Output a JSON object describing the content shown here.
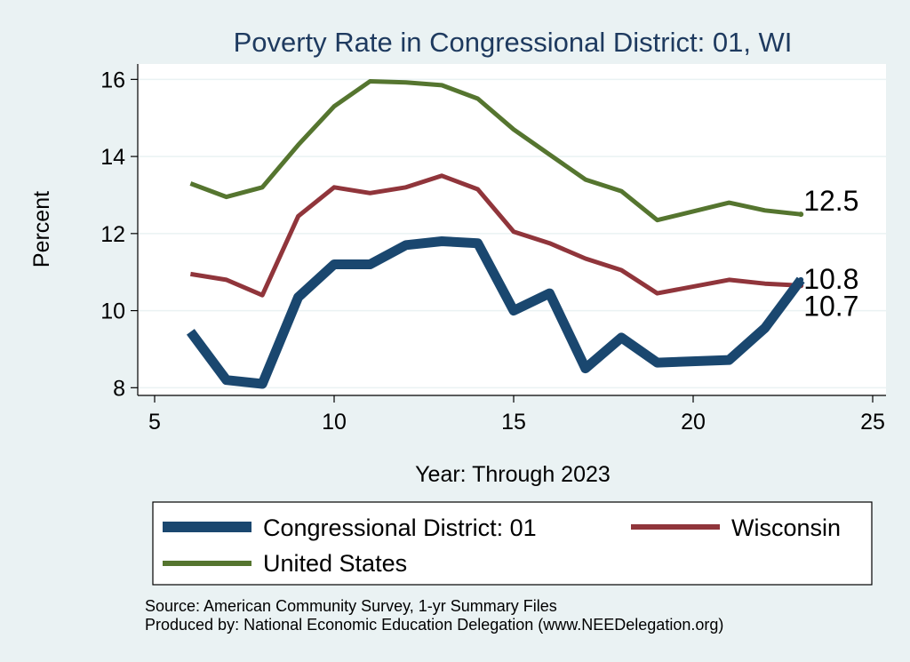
{
  "chart_data": {
    "type": "line",
    "title": "Poverty Rate in Congressional District:  01, WI",
    "xlabel": "Year: Through 2023",
    "ylabel": "Percent",
    "xlim": [
      5,
      25
    ],
    "ylim": [
      7.8,
      16.4
    ],
    "xticks": [
      5,
      10,
      15,
      20,
      25
    ],
    "yticks": [
      8,
      10,
      12,
      14,
      16
    ],
    "grid": true,
    "legend_position": "bottom",
    "series": [
      {
        "name": "Congressional District:  01",
        "color": "#1a476f",
        "x": [
          6,
          7,
          8,
          9,
          10,
          11,
          12,
          13,
          14,
          15,
          16,
          17,
          18,
          19,
          21,
          22,
          23
        ],
        "values": [
          9.45,
          8.2,
          8.1,
          10.35,
          11.2,
          11.2,
          11.7,
          11.8,
          11.75,
          10.0,
          10.45,
          8.5,
          9.3,
          8.65,
          8.72,
          9.55,
          10.8
        ],
        "end_label": "10.8"
      },
      {
        "name": "Wisconsin",
        "color": "#90353b",
        "x": [
          6,
          7,
          8,
          9,
          10,
          11,
          12,
          13,
          14,
          15,
          16,
          17,
          18,
          19,
          21,
          22,
          23
        ],
        "values": [
          10.95,
          10.8,
          10.4,
          12.45,
          13.2,
          13.05,
          13.2,
          13.5,
          13.15,
          12.05,
          11.75,
          11.35,
          11.05,
          10.45,
          10.8,
          10.7,
          10.65
        ],
        "end_label": "10.7"
      },
      {
        "name": "United States",
        "color": "#55752f",
        "x": [
          6,
          7,
          8,
          9,
          10,
          11,
          12,
          13,
          14,
          15,
          16,
          17,
          18,
          19,
          21,
          22,
          23
        ],
        "values": [
          13.3,
          12.95,
          13.2,
          14.3,
          15.3,
          15.95,
          15.92,
          15.85,
          15.5,
          14.7,
          14.05,
          13.4,
          13.1,
          12.35,
          12.8,
          12.6,
          12.5
        ],
        "end_label": "12.5"
      }
    ]
  },
  "footer": {
    "source": "Source: American Community Survey, 1-yr Summary Files",
    "produced": "Produced by: National Economic Education Delegation (www.NEEDelegation.org)"
  }
}
